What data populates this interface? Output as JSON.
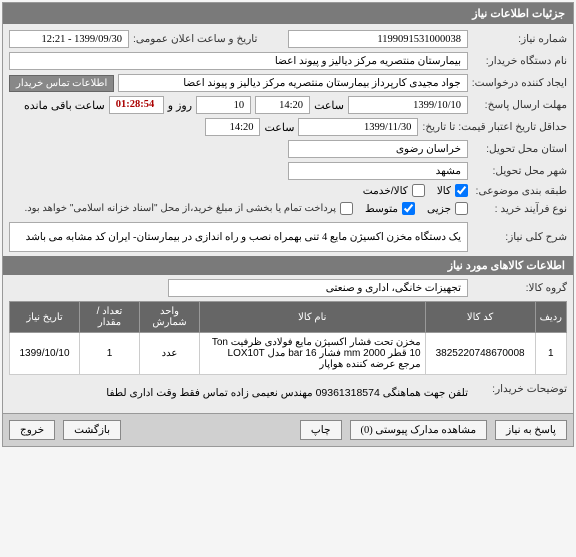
{
  "header": "جزئیات اطلاعات نیاز",
  "fields": {
    "need_no_lbl": "شماره نیاز:",
    "need_no": "1199091531000038",
    "public_date_lbl": "تاریخ و ساعت اعلان عمومی:",
    "public_date": "1399/09/30 - 12:21",
    "buyer_org_lbl": "نام دستگاه خریدار:",
    "buyer_org": "بیمارستان منتصریه مرکز دیالیز و پیوند اعضا",
    "creator_lbl": "ایجاد کننده درخواست:",
    "creator": "جواد مجیدی کارپرداز بیمارستان منتصریه مرکز دیالیز و پیوند اعضا",
    "contact_btn": "اطلاعات تماس خریدار",
    "reply_deadline_lbl": "مهلت ارسال پاسخ:",
    "reply_date": "1399/10/10",
    "saat1": "ساعت",
    "reply_time": "14:20",
    "days": "10",
    "rooz": "روز و",
    "remain": "01:28:54",
    "remain_lbl": "ساعت باقی مانده",
    "min_validity_lbl": "حداقل تاریخ اعتبار قیمت: تا تاریخ:",
    "validity_date": "1399/11/30",
    "saat2": "ساعت",
    "validity_time": "14:20",
    "delivery_prov_lbl": "استان محل تحویل:",
    "delivery_prov": "خراسان رضوی",
    "delivery_city_lbl": "شهر محل تحویل:",
    "delivery_city": "مشهد",
    "category_lbl": "طبقه بندی موضوعی:",
    "cb_kala": "کالا",
    "cb_khedmat": "کالا/خدمت",
    "purchase_type_lbl": "نوع فرآیند خرید :",
    "pt_small": "جزیی",
    "pt_medium": "متوسط",
    "pay_note": "پرداخت تمام یا بخشی از مبلغ خرید،از محل \"اسناد خزانه اسلامی\" خواهد بود.",
    "title_lbl": "شرح کلی نیاز:",
    "title_val": "یک دستگاه مخزن اکسیژن مایع 4 تنی بهمراه نصب و راه اندازی در بیمارستان- ایران کد مشابه می باشد"
  },
  "items_header": "اطلاعات کالاهای مورد نیاز",
  "group_lbl": "گروه کالا:",
  "group_val": "تجهیزات خانگی، اداری و صنعتی",
  "table": {
    "cols": [
      "ردیف",
      "کد کالا",
      "نام کالا",
      "واحد شمارش",
      "تعداد / مقدار",
      "تاریخ نیاز"
    ],
    "rows": [
      [
        "1",
        "3825220748670008",
        "مخزن تحت فشار اکسیژن مایع فولادی ظرفیت Ton 10 قطر mm 2000 فشار bar 16 مدل LOX10T مرجع عرضه کننده هواپار",
        "عدد",
        "1",
        "1399/10/10"
      ]
    ]
  },
  "buyer_note_lbl": "توضیحات خریدار:",
  "buyer_note": "تلفن جهت هماهنگی 09361318574 مهندس نعیمی زاده تماس فقط وقت اداری لطفا",
  "footer": {
    "reply": "پاسخ به نیاز",
    "attach": "مشاهده مدارک پیوستی (0)",
    "print": "چاپ",
    "back": "بازگشت",
    "exit": "خروج"
  }
}
